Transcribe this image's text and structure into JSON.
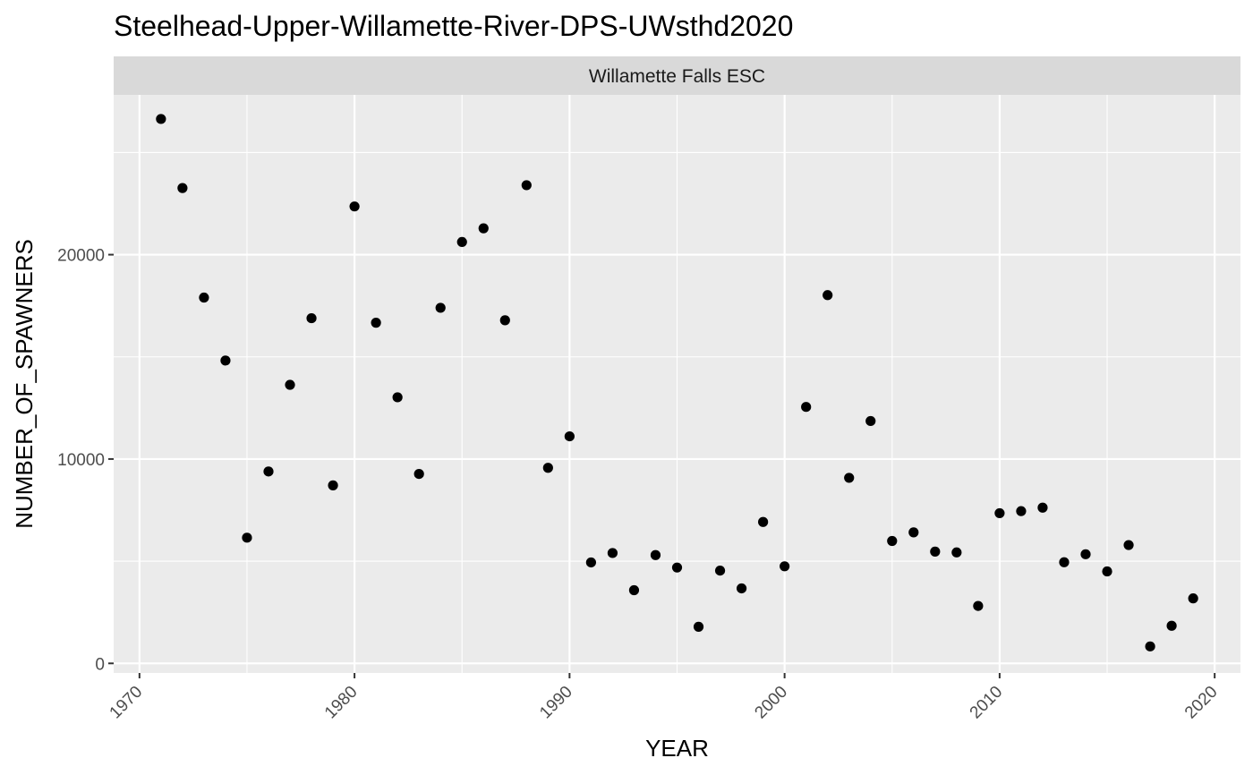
{
  "chart_data": {
    "type": "scatter",
    "title": "Steelhead-Upper-Willamette-River-DPS-UWsthd2020",
    "facet_label": "Willamette Falls ESC",
    "xlabel": "YEAR",
    "ylabel": "NUMBER_OF_SPAWNERS",
    "xlim": [
      1968.8,
      2021.2
    ],
    "ylim": [
      -470,
      27820
    ],
    "x_ticks": [
      1970,
      1980,
      1990,
      2000,
      2010,
      2020
    ],
    "x_tick_labels": [
      "1970",
      "1980",
      "1990",
      "2000",
      "2010",
      "2020"
    ],
    "y_ticks": [
      0,
      10000,
      20000
    ],
    "y_tick_labels": [
      "0",
      "10000",
      "20000"
    ],
    "grid": true,
    "background": "#EBEBEB",
    "strip_color": "#D9D9D9",
    "point_color": "#000000",
    "x": [
      1971,
      1972,
      1973,
      1974,
      1975,
      1976,
      1977,
      1978,
      1979,
      1980,
      1981,
      1982,
      1983,
      1984,
      1985,
      1986,
      1987,
      1988,
      1989,
      1990,
      1991,
      1992,
      1993,
      1994,
      1995,
      1996,
      1997,
      1998,
      1999,
      2000,
      2001,
      2002,
      2003,
      2004,
      2005,
      2006,
      2007,
      2008,
      2009,
      2010,
      2011,
      2012,
      2013,
      2014,
      2015,
      2016,
      2017,
      2018,
      2019
    ],
    "y": [
      26640,
      23260,
      17900,
      14820,
      6150,
      9390,
      13630,
      16890,
      8710,
      22360,
      16670,
      13020,
      9270,
      17400,
      20620,
      21290,
      16790,
      23400,
      9570,
      11110,
      4940,
      5400,
      3580,
      5300,
      4690,
      1790,
      4540,
      3670,
      6920,
      4750,
      12550,
      18020,
      9080,
      11860,
      5990,
      6410,
      5470,
      5430,
      2810,
      7350,
      7450,
      7620,
      4950,
      5340,
      4500,
      5790,
      830,
      1840,
      3180
    ]
  }
}
